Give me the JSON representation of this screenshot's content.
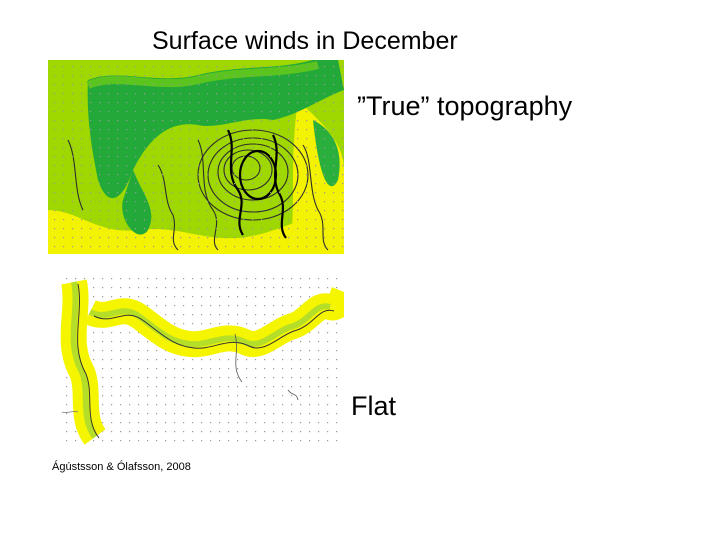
{
  "slide": {
    "title": "Surface winds in December",
    "label_true": "”True” topography",
    "label_flat": "Flat",
    "credit": "Ágústsson & Ólafsson, 2008"
  },
  "maps": {
    "true": {
      "type": "wind-speed-map-with-topography",
      "colors": {
        "low": "#f2f200",
        "mid": "#8cd400",
        "high": "#22a93a",
        "contour": "#333333"
      }
    },
    "flat": {
      "type": "wind-speed-map-flat",
      "colors": {
        "band": "#f5f500",
        "band_inner": "#b5de28",
        "grid": "#9a9a9a"
      }
    }
  }
}
